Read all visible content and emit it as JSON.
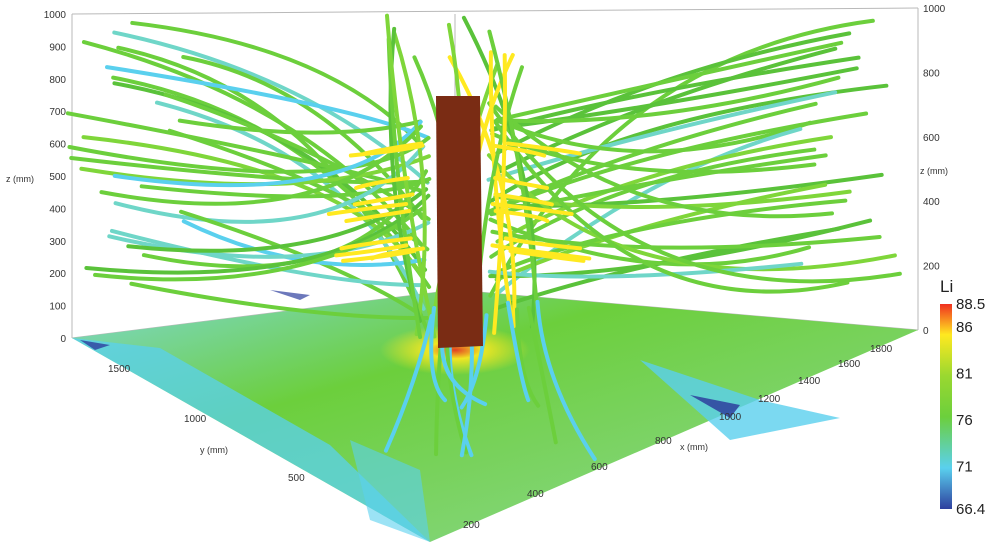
{
  "chart_data": {
    "type": "3d-streamline-field",
    "variable": "Li",
    "colorbar": {
      "title": "Li",
      "min": 66.4,
      "max": 88.5,
      "ticks": [
        "88.5",
        "86",
        "81",
        "76",
        "71",
        "66.4"
      ],
      "colormap": [
        "#2e3f9e",
        "#5ad0ee",
        "#6ccf3c",
        "#ffe920",
        "#f03020"
      ]
    },
    "axes": {
      "z": {
        "label": "z (mm)",
        "range": [
          0,
          1000
        ],
        "ticks_left": [
          "0",
          "100",
          "200",
          "300",
          "400",
          "500",
          "600",
          "700",
          "800",
          "900",
          "1000"
        ],
        "ticks_right": [
          "0",
          "200",
          "400",
          "600",
          "800",
          "1000"
        ]
      },
      "y": {
        "label": "y (mm)",
        "ticks": [
          "1500",
          "1000",
          "500"
        ]
      },
      "x": {
        "label": "x (mm)",
        "ticks": [
          "200",
          "400",
          "600",
          "800",
          "1000",
          "1200",
          "1400",
          "1600",
          "1800"
        ]
      }
    },
    "obstacle": {
      "label": "",
      "color": "#7a2c14"
    },
    "floor_colors": {
      "dominant": "#6ccf3c",
      "low": "#5ad0ee",
      "min": "#2e3f9e",
      "high": "#ffe920"
    }
  }
}
